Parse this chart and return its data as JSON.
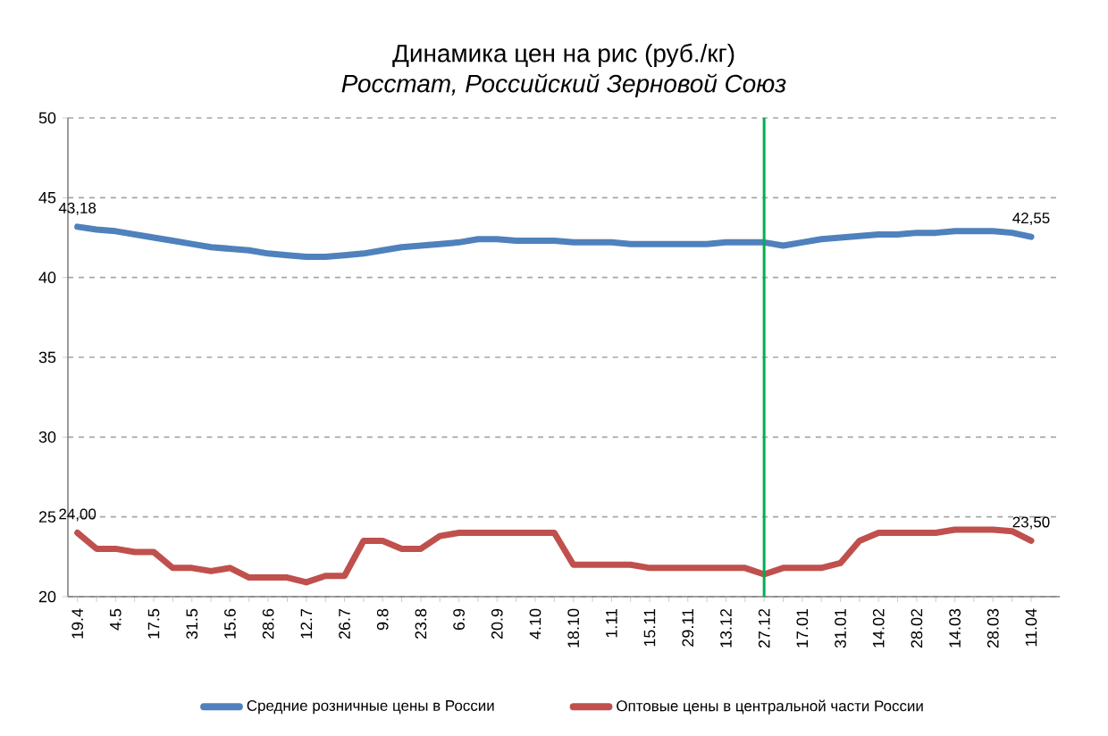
{
  "chart_data": {
    "type": "line",
    "title": "Динамика цен на рис (руб./кг)",
    "subtitle": "*Росстат, Российский Зерновой Союз*",
    "categories": [
      "19.4",
      null,
      "4.5",
      null,
      "17.5",
      null,
      "31.5",
      null,
      "15.6",
      null,
      "28.6",
      null,
      "12.7",
      null,
      "26.7",
      null,
      "9.8",
      null,
      "23.8",
      null,
      "6.9",
      null,
      "20.9",
      null,
      "4.10",
      null,
      "18.10",
      null,
      "1.11",
      null,
      "15.11",
      null,
      "29.11",
      null,
      "13.12",
      null,
      "27.12",
      null,
      "17.01",
      null,
      "31.01",
      null,
      "14.02",
      null,
      "28.02",
      null,
      "14.03",
      null,
      "28.03",
      null,
      "11.04"
    ],
    "series": [
      {
        "name": "Средние розничные цены в России",
        "color": "#4f81bd",
        "values": [
          43.18,
          43.0,
          42.9,
          42.7,
          42.5,
          42.3,
          42.1,
          41.9,
          41.8,
          41.7,
          41.5,
          41.4,
          41.3,
          41.3,
          41.4,
          41.5,
          41.7,
          41.9,
          42.0,
          42.1,
          42.2,
          42.4,
          42.4,
          42.3,
          42.3,
          42.3,
          42.2,
          42.2,
          42.2,
          42.1,
          42.1,
          42.1,
          42.1,
          42.1,
          42.2,
          42.2,
          42.2,
          42.0,
          42.2,
          42.4,
          42.5,
          42.6,
          42.7,
          42.7,
          42.8,
          42.8,
          42.9,
          42.9,
          42.9,
          42.8,
          42.55
        ],
        "value_labels": [
          "43,18",
          null,
          null,
          null,
          null,
          null,
          null,
          null,
          null,
          null,
          null,
          null,
          null,
          null,
          null,
          null,
          null,
          null,
          null,
          null,
          null,
          null,
          null,
          null,
          null,
          null,
          null,
          null,
          null,
          null,
          null,
          null,
          null,
          null,
          null,
          null,
          null,
          null,
          null,
          null,
          null,
          null,
          null,
          null,
          null,
          null,
          null,
          null,
          null,
          null,
          "42,55"
        ]
      },
      {
        "name": "Оптовые цены в центральной части России",
        "color": "#c0504d",
        "values": [
          24.0,
          23.0,
          23.0,
          22.8,
          22.8,
          21.8,
          21.8,
          21.6,
          21.8,
          21.2,
          21.2,
          21.2,
          20.9,
          21.3,
          21.3,
          23.5,
          23.5,
          23.0,
          23.0,
          23.8,
          24.0,
          24.0,
          24.0,
          24.0,
          24.0,
          24.0,
          22.0,
          22.0,
          22.0,
          22.0,
          21.8,
          21.8,
          21.8,
          21.8,
          21.8,
          21.8,
          21.4,
          21.8,
          21.8,
          21.8,
          22.1,
          23.5,
          24.0,
          24.0,
          24.0,
          24.0,
          24.2,
          24.2,
          24.2,
          24.1,
          23.5
        ],
        "value_labels": [
          "24,00",
          null,
          null,
          null,
          null,
          null,
          null,
          null,
          null,
          null,
          null,
          null,
          null,
          null,
          null,
          null,
          null,
          null,
          null,
          null,
          null,
          null,
          null,
          null,
          null,
          null,
          null,
          null,
          null,
          null,
          null,
          null,
          null,
          null,
          null,
          null,
          null,
          null,
          null,
          null,
          null,
          null,
          null,
          null,
          null,
          null,
          null,
          null,
          null,
          null,
          "23,50"
        ]
      }
    ],
    "ylim": [
      20,
      50
    ],
    "yticks": [
      20,
      25,
      30,
      35,
      40,
      45,
      50
    ],
    "grid": "y",
    "legend": "bottom",
    "marker": "none",
    "ref_lines": [
      {
        "axis": "x",
        "value": "27.12",
        "color": "#00b050"
      }
    ]
  }
}
